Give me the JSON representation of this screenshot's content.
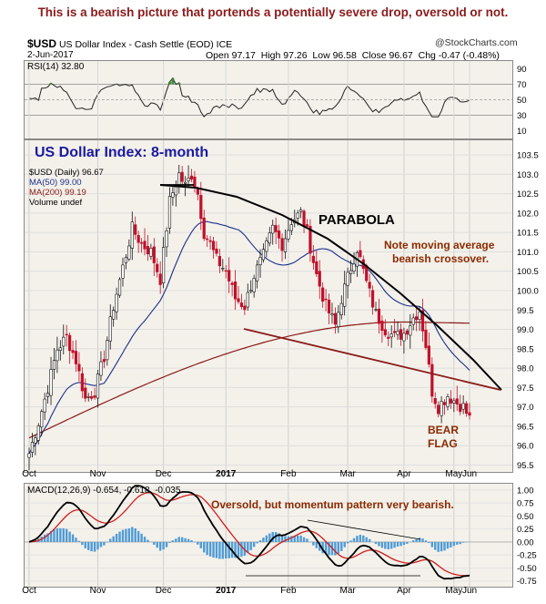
{
  "caption": "This is a bearish picture that portends a potentially severe drop, oversold or not.",
  "header": {
    "symbol": "$USD",
    "name": "US Dollar Index - Cash Settle (EOD) ICE",
    "source": "@StockCharts.com",
    "date": "2-Jun-2017",
    "ohlc": {
      "open_label": "Open",
      "open": "97.17",
      "high_label": "High",
      "high": "97.26",
      "low_label": "Low",
      "low": "96.58",
      "close_label": "Close",
      "close": "96.67",
      "chg_label": "Chg",
      "chg": "-0.47 (-0.48%)"
    }
  },
  "rsi_panel": {
    "label": "RSI(14) 32.80",
    "ticks": [
      "90",
      "70",
      "50",
      "30",
      "10"
    ]
  },
  "price_panel": {
    "title": "US Dollar Index: 8-month",
    "legend": [
      "$USD (Daily) 96.67",
      "MA(50) 99.00",
      "MA(200) 99.19",
      "Volume undef"
    ],
    "ticks": [
      "103.5",
      "103.0",
      "102.5",
      "102.0",
      "101.5",
      "101.0",
      "100.5",
      "100.0",
      "99.5",
      "99.0",
      "98.5",
      "98.0",
      "97.5",
      "97.0",
      "96.5",
      "96.0",
      "95.5"
    ]
  },
  "months": [
    "Oct",
    "Nov",
    "Dec",
    "2017",
    "Feb",
    "Mar",
    "Apr",
    "May",
    "Jun"
  ],
  "macd_panel": {
    "label": "MACD(12,26,9) -0.654, -0.618, -0.035",
    "ticks": [
      "1.00",
      "0.75",
      "0.50",
      "0.25",
      "0.00",
      "-0.25",
      "-0.50",
      "-0.75"
    ]
  },
  "annotations": {
    "parabola": "PARABOLA",
    "note_line1": "Note moving average",
    "note_line2": "bearish crossover.",
    "bear1": "BEAR",
    "bear2": "FLAG",
    "macd_note": "Oversold, but momentum pattern very bearish."
  },
  "colors": {
    "caption": "#8b1a1a",
    "title": "#1a1aa0",
    "up": "#111111",
    "down": "#c0102a",
    "ma50": "#1c2f8a",
    "ma200": "#8b1a1a",
    "macd": "#000000",
    "signal": "#d21c1c",
    "hist": "#4f9bd6",
    "rsi_fill": "#3a8a3a"
  },
  "chart_data": {
    "type": "line",
    "ylim": [
      95.3,
      103.9
    ],
    "anchors": [
      {
        "t": 0,
        "v": 95.8
      },
      {
        "t": 3,
        "v": 96.6
      },
      {
        "t": 6,
        "v": 97.5
      },
      {
        "t": 9,
        "v": 98.5
      },
      {
        "t": 12,
        "v": 98.8
      },
      {
        "t": 15,
        "v": 98.2
      },
      {
        "t": 18,
        "v": 97.2
      },
      {
        "t": 21,
        "v": 97.4
      },
      {
        "t": 24,
        "v": 98.3
      },
      {
        "t": 27,
        "v": 99.6
      },
      {
        "t": 30,
        "v": 100.6
      },
      {
        "t": 33,
        "v": 101.6
      },
      {
        "t": 36,
        "v": 101.2
      },
      {
        "t": 39,
        "v": 101.0
      },
      {
        "t": 42,
        "v": 100.3
      },
      {
        "t": 45,
        "v": 102.3
      },
      {
        "t": 48,
        "v": 103.0
      },
      {
        "t": 50,
        "v": 102.7
      },
      {
        "t": 52,
        "v": 103.0
      },
      {
        "t": 54,
        "v": 102.5
      },
      {
        "t": 56,
        "v": 101.5
      },
      {
        "t": 58,
        "v": 101.2
      },
      {
        "t": 60,
        "v": 100.8
      },
      {
        "t": 63,
        "v": 100.5
      },
      {
        "t": 66,
        "v": 99.8
      },
      {
        "t": 69,
        "v": 99.6
      },
      {
        "t": 72,
        "v": 100.4
      },
      {
        "t": 75,
        "v": 100.9
      },
      {
        "t": 78,
        "v": 101.6
      },
      {
        "t": 81,
        "v": 101.2
      },
      {
        "t": 84,
        "v": 101.8
      },
      {
        "t": 87,
        "v": 102.0
      },
      {
        "t": 89,
        "v": 101.5
      },
      {
        "t": 92,
        "v": 100.4
      },
      {
        "t": 95,
        "v": 99.6
      },
      {
        "t": 98,
        "v": 99.1
      },
      {
        "t": 100,
        "v": 99.8
      },
      {
        "t": 103,
        "v": 100.6
      },
      {
        "t": 105,
        "v": 101.1
      },
      {
        "t": 108,
        "v": 100.2
      },
      {
        "t": 111,
        "v": 99.4
      },
      {
        "t": 114,
        "v": 99.0
      },
      {
        "t": 117,
        "v": 98.8
      },
      {
        "t": 120,
        "v": 98.9
      },
      {
        "t": 123,
        "v": 99.3
      },
      {
        "t": 125,
        "v": 99.5
      },
      {
        "t": 127,
        "v": 98.6
      },
      {
        "t": 129,
        "v": 97.4
      },
      {
        "t": 131,
        "v": 97.0
      },
      {
        "t": 134,
        "v": 97.3
      },
      {
        "t": 137,
        "v": 97.1
      },
      {
        "t": 139,
        "v": 97.0
      },
      {
        "t": 141,
        "v": 96.7
      }
    ]
  }
}
